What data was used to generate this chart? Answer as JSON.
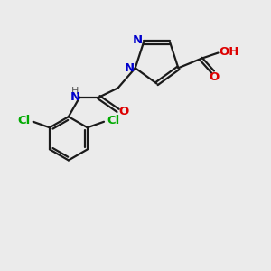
{
  "bg_color": "#ebebeb",
  "bond_color": "#1a1a1a",
  "N_color": "#0000cc",
  "O_color": "#dd0000",
  "Cl_color": "#00aa00",
  "line_width": 1.6,
  "dbo": 0.08,
  "figsize": [
    3.0,
    3.0
  ],
  "dpi": 100,
  "xlim": [
    0,
    10
  ],
  "ylim": [
    0,
    10
  ]
}
